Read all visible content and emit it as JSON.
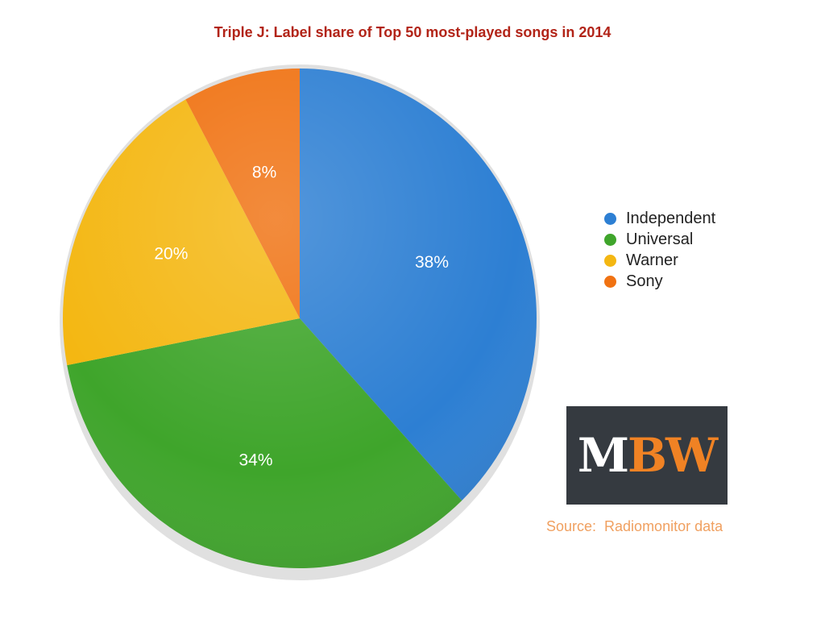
{
  "chart_data": {
    "type": "pie",
    "title": "Triple J: Label share of Top 50 most-played songs in 2014",
    "slices": [
      {
        "name": "Independent",
        "value": 38,
        "label": "38%",
        "color": "#2d7fd3"
      },
      {
        "name": "Universal",
        "value": 34,
        "label": "34%",
        "color": "#3fa52b"
      },
      {
        "name": "Warner",
        "value": 20,
        "label": "20%",
        "color": "#f4b712"
      },
      {
        "name": "Sony",
        "value": 8,
        "label": "8%",
        "color": "#f07212"
      }
    ],
    "start": "top",
    "direction": "clockwise",
    "legend_position": "right"
  },
  "logo": {
    "part1": "M",
    "part2": "BW",
    "colors": {
      "background": "#353a40",
      "m": "#ffffff",
      "bw": "#f08224"
    }
  },
  "source": "Source:  Radiomonitor data"
}
